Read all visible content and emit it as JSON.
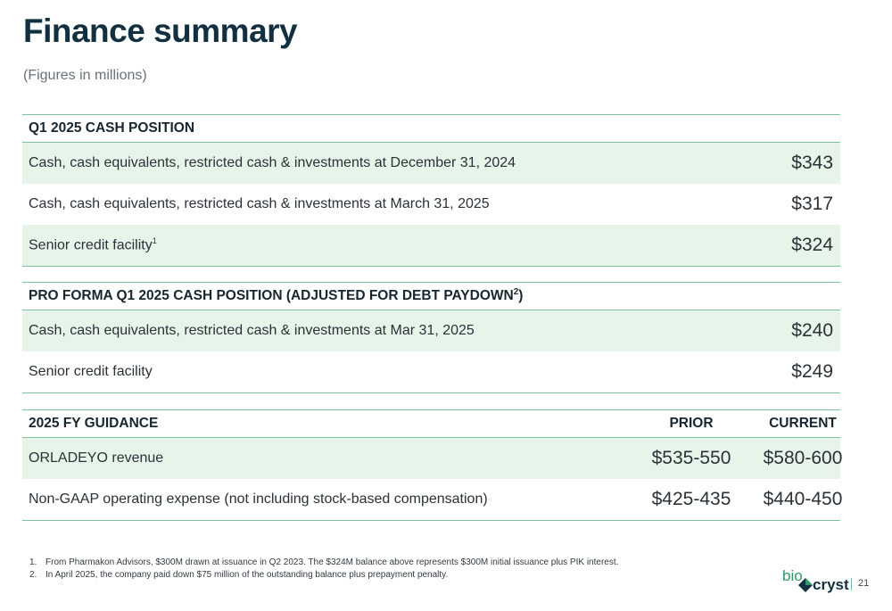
{
  "title": "Finance summary",
  "subtitle": "(Figures in millions)",
  "cash_position": {
    "header": "Q1 2025 CASH POSITION",
    "rows": [
      {
        "label": "Cash, cash equivalents, restricted cash & investments at December 31, 2024",
        "sup": "",
        "value": "$343"
      },
      {
        "label": "Cash, cash equivalents, restricted cash & investments at March 31, 2025",
        "sup": "",
        "value": "$317"
      },
      {
        "label": "Senior credit facility",
        "sup": "1",
        "value": "$324"
      }
    ]
  },
  "pro_forma": {
    "header": "PRO FORMA Q1 2025 CASH POSITION (ADJUSTED FOR DEBT PAYDOWN",
    "header_sup": "2",
    "header_close": ")",
    "rows": [
      {
        "label": "Cash, cash equivalents, restricted cash & investments at Mar 31, 2025",
        "value": "$240"
      },
      {
        "label": "Senior credit facility",
        "value": "$249"
      }
    ]
  },
  "guidance": {
    "header": "2025 FY GUIDANCE",
    "col_prior": "PRIOR",
    "col_current": "CURRENT",
    "rows": [
      {
        "label": "ORLADEYO revenue",
        "prior": "$535-550",
        "current": "$580-600"
      },
      {
        "label": "Non-GAAP operating expense (not including stock-based compensation)",
        "prior": "$425-435",
        "current": "$440-450"
      }
    ]
  },
  "footnotes": [
    {
      "num": "1.",
      "text": "From Pharmakon Advisors, $300M drawn at issuance in Q2 2023. The $324M balance above represents $300M initial issuance plus PIK interest."
    },
    {
      "num": "2.",
      "text": "In April 2025, the company paid down $75 million of the outstanding balance plus prepayment penalty."
    }
  ],
  "logo": {
    "part1": "bio",
    "part2": "cryst"
  },
  "page_number": "21",
  "colors": {
    "accent": "#7dc49b",
    "shade": "#e6f4ea",
    "title": "#12303f",
    "logo_green": "#2e9a64"
  }
}
